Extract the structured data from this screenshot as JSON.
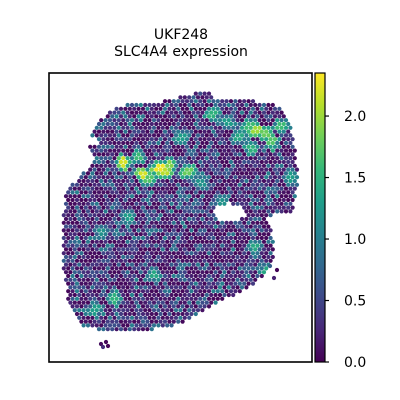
{
  "chart_data": {
    "type": "scatter",
    "title_lines": [
      "UKF248",
      "SLC4A4 expression"
    ],
    "xlabel": "",
    "ylabel": "",
    "grid": false,
    "legend": "none",
    "colorbar": {
      "label": "",
      "range": [
        0.0,
        2.35
      ],
      "ticks": [
        0.0,
        0.5,
        1.0,
        1.5,
        2.0
      ],
      "tick_labels": [
        "0.0",
        "0.5",
        "1.0",
        "1.5",
        "2.0"
      ],
      "colormap": [
        "#440154",
        "#482878",
        "#3e4989",
        "#31688e",
        "#26828e",
        "#1f9e89",
        "#35b779",
        "#6ece58",
        "#b5de2b",
        "#fde725"
      ]
    },
    "hotspots": [
      {
        "x": 0.42,
        "y": 0.67,
        "value": 2.3
      },
      {
        "x": 0.44,
        "y": 0.66,
        "value": 2.1
      },
      {
        "x": 0.46,
        "y": 0.68,
        "value": 1.9
      },
      {
        "x": 0.36,
        "y": 0.65,
        "value": 2.2
      },
      {
        "x": 0.38,
        "y": 0.63,
        "value": 1.7
      },
      {
        "x": 0.28,
        "y": 0.69,
        "value": 2.2
      },
      {
        "x": 0.53,
        "y": 0.66,
        "value": 1.8
      },
      {
        "x": 0.34,
        "y": 0.71,
        "value": 1.6
      },
      {
        "x": 0.79,
        "y": 0.8,
        "value": 2.0
      },
      {
        "x": 0.82,
        "y": 0.79,
        "value": 1.8
      },
      {
        "x": 0.76,
        "y": 0.82,
        "value": 1.6
      },
      {
        "x": 0.85,
        "y": 0.76,
        "value": 1.7
      },
      {
        "x": 0.77,
        "y": 0.74,
        "value": 1.5
      },
      {
        "x": 0.72,
        "y": 0.78,
        "value": 1.4
      },
      {
        "x": 0.68,
        "y": 0.83,
        "value": 1.3
      },
      {
        "x": 0.88,
        "y": 0.82,
        "value": 1.6
      },
      {
        "x": 0.25,
        "y": 0.22,
        "value": 1.5
      },
      {
        "x": 0.18,
        "y": 0.18,
        "value": 1.3
      },
      {
        "x": 0.4,
        "y": 0.3,
        "value": 1.4
      },
      {
        "x": 0.62,
        "y": 0.86,
        "value": 1.5
      },
      {
        "x": 0.58,
        "y": 0.62,
        "value": 1.2
      },
      {
        "x": 0.78,
        "y": 0.4,
        "value": 1.4
      },
      {
        "x": 0.83,
        "y": 0.32,
        "value": 1.4
      },
      {
        "x": 0.66,
        "y": 0.55,
        "value": 1.2
      },
      {
        "x": 0.3,
        "y": 0.5,
        "value": 1.3
      },
      {
        "x": 0.2,
        "y": 0.45,
        "value": 1.2
      },
      {
        "x": 0.5,
        "y": 0.78,
        "value": 1.3
      },
      {
        "x": 0.92,
        "y": 0.64,
        "value": 1.3
      }
    ]
  }
}
